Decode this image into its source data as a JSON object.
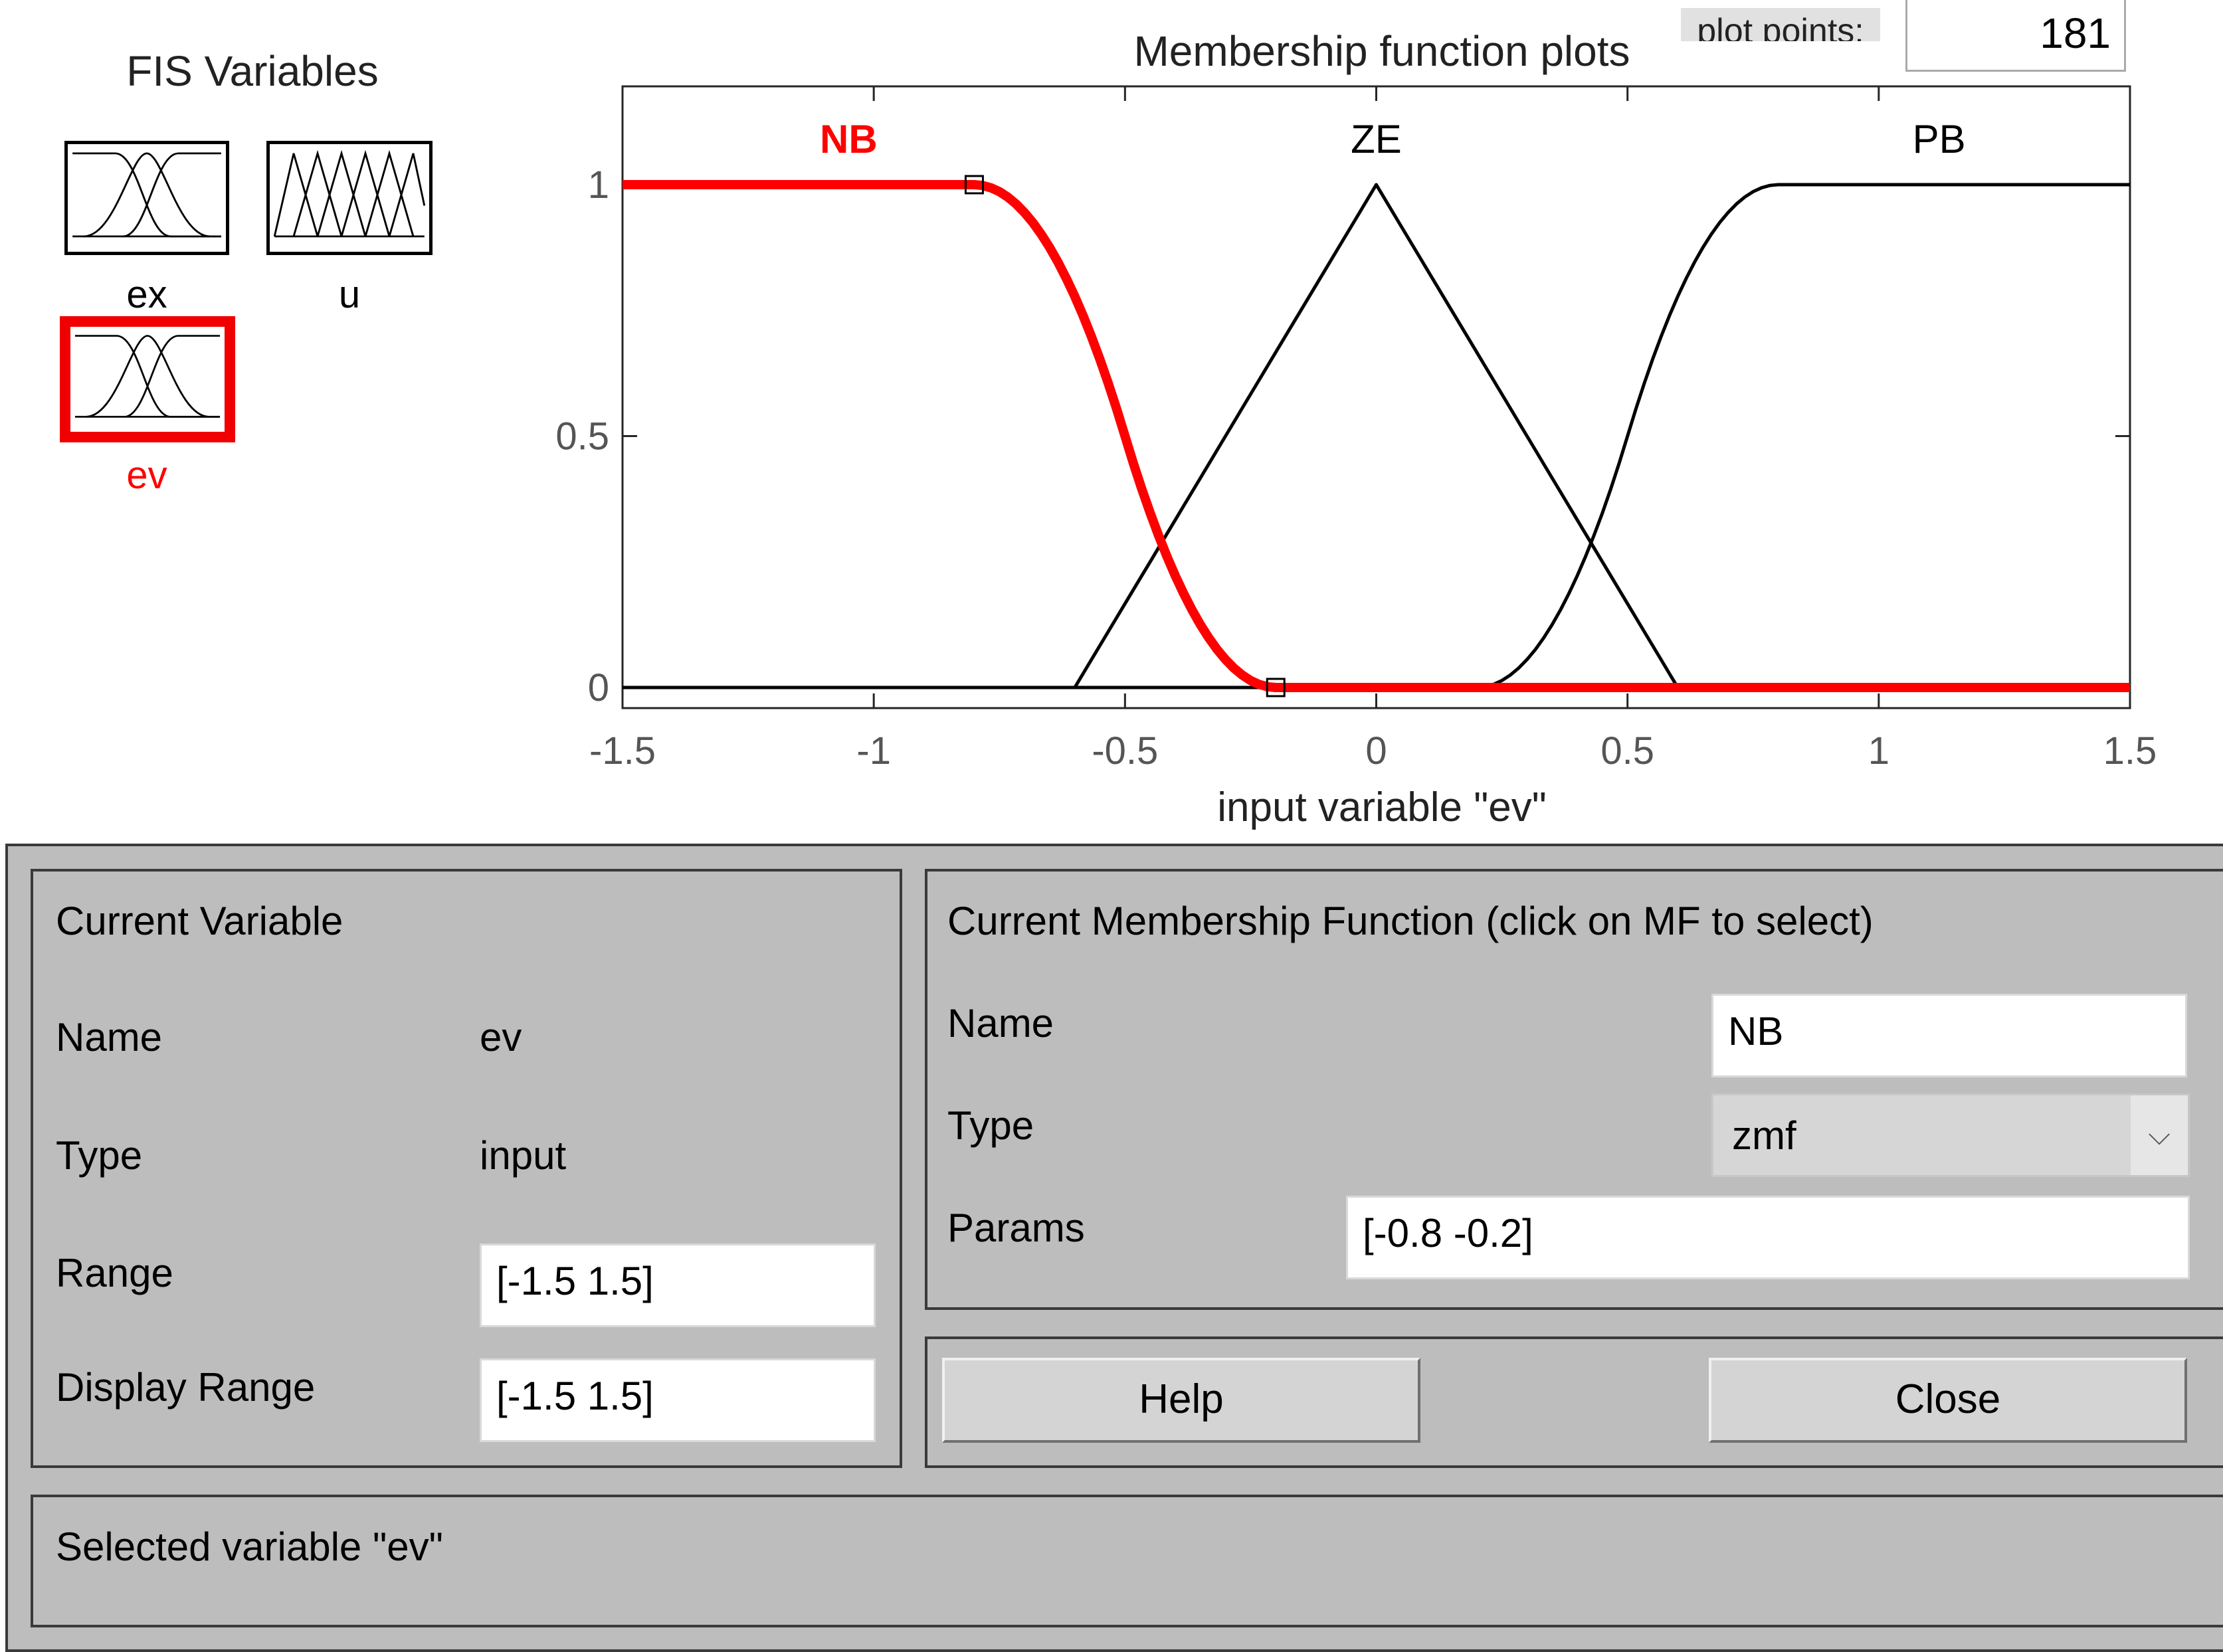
{
  "fis_panel": {
    "title": "FIS Variables",
    "variables": [
      {
        "label": "ex",
        "kind": "input"
      },
      {
        "label": "u",
        "kind": "output"
      },
      {
        "label": "ev",
        "kind": "input",
        "selected": true
      }
    ]
  },
  "plot": {
    "title": "Membership function plots",
    "plot_points_label": "plot points:",
    "plot_points_value": "181"
  },
  "chart_data": {
    "type": "line",
    "title": "Membership function plots",
    "xlabel": "input variable \"ev\"",
    "ylabel": "",
    "xlim": [
      -1.5,
      1.5
    ],
    "ylim": [
      -0.05,
      1.2
    ],
    "xticks": [
      "-1.5",
      "-1",
      "-0.5",
      "0",
      "0.5",
      "1",
      "1.5"
    ],
    "yticks": [
      "0",
      "0.5",
      "1"
    ],
    "series": [
      {
        "name": "NB",
        "mf_type": "zmf",
        "params": [
          -0.8,
          -0.2
        ],
        "color": "#ff0000",
        "selected": true
      },
      {
        "name": "ZE",
        "mf_type": "trimf",
        "params": [
          -0.6,
          0,
          0.6
        ],
        "color": "#000000"
      },
      {
        "name": "PB",
        "mf_type": "smf",
        "params": [
          0.2,
          0.8
        ],
        "color": "#000000"
      }
    ]
  },
  "current_variable": {
    "heading": "Current Variable",
    "name_label": "Name",
    "name_value": "ev",
    "type_label": "Type",
    "type_value": "input",
    "range_label": "Range",
    "range_value": "[-1.5 1.5]",
    "display_range_label": "Display Range",
    "display_range_value": "[-1.5 1.5]"
  },
  "current_mf": {
    "heading": "Current Membership Function (click on MF to select)",
    "name_label": "Name",
    "name_value": "NB",
    "type_label": "Type",
    "type_value": "zmf",
    "params_label": "Params",
    "params_value": "[-0.8 -0.2]"
  },
  "buttons": {
    "help": "Help",
    "close": "Close"
  },
  "status": "Selected variable \"ev\"",
  "colors": {
    "selected": "#ff0000",
    "panel_bg": "#bdbdbd"
  }
}
